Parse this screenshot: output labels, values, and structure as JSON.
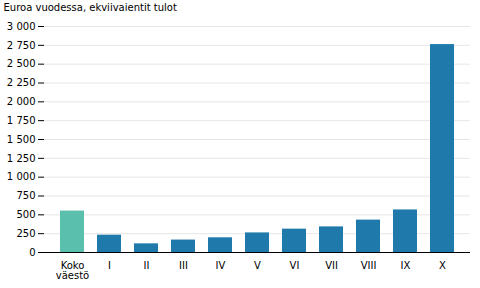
{
  "chart_data": {
    "type": "bar",
    "categories": [
      "Koko\nväestö",
      "I",
      "II",
      "III",
      "IV",
      "V",
      "VI",
      "VII",
      "VIII",
      "IX",
      "X"
    ],
    "values": [
      550,
      230,
      115,
      165,
      195,
      260,
      310,
      340,
      430,
      565,
      2760
    ],
    "colors": [
      "#5bbfad",
      "#1f7aab",
      "#1f7aab",
      "#1f7aab",
      "#1f7aab",
      "#1f7aab",
      "#1f7aab",
      "#1f7aab",
      "#1f7aab",
      "#1f7aab",
      "#1f7aab"
    ],
    "ylabel": "Euroa vuodessa, ekviivaientit tulot",
    "ylim": [
      0,
      3000
    ],
    "yticks": [
      0,
      250,
      500,
      750,
      {
        "value": 1000,
        "label": "1 000"
      },
      {
        "value": 1250,
        "label": "1 250"
      },
      {
        "value": 1500,
        "label": "1 500"
      },
      {
        "value": 1750,
        "label": "1 750"
      },
      {
        "value": 2000,
        "label": "2 000"
      },
      {
        "value": 2250,
        "label": "2 250"
      },
      {
        "value": 2500,
        "label": "2 500"
      },
      {
        "value": 2750,
        "label": "2 750"
      },
      {
        "value": 3000,
        "label": "3 000"
      }
    ],
    "grid": true
  }
}
